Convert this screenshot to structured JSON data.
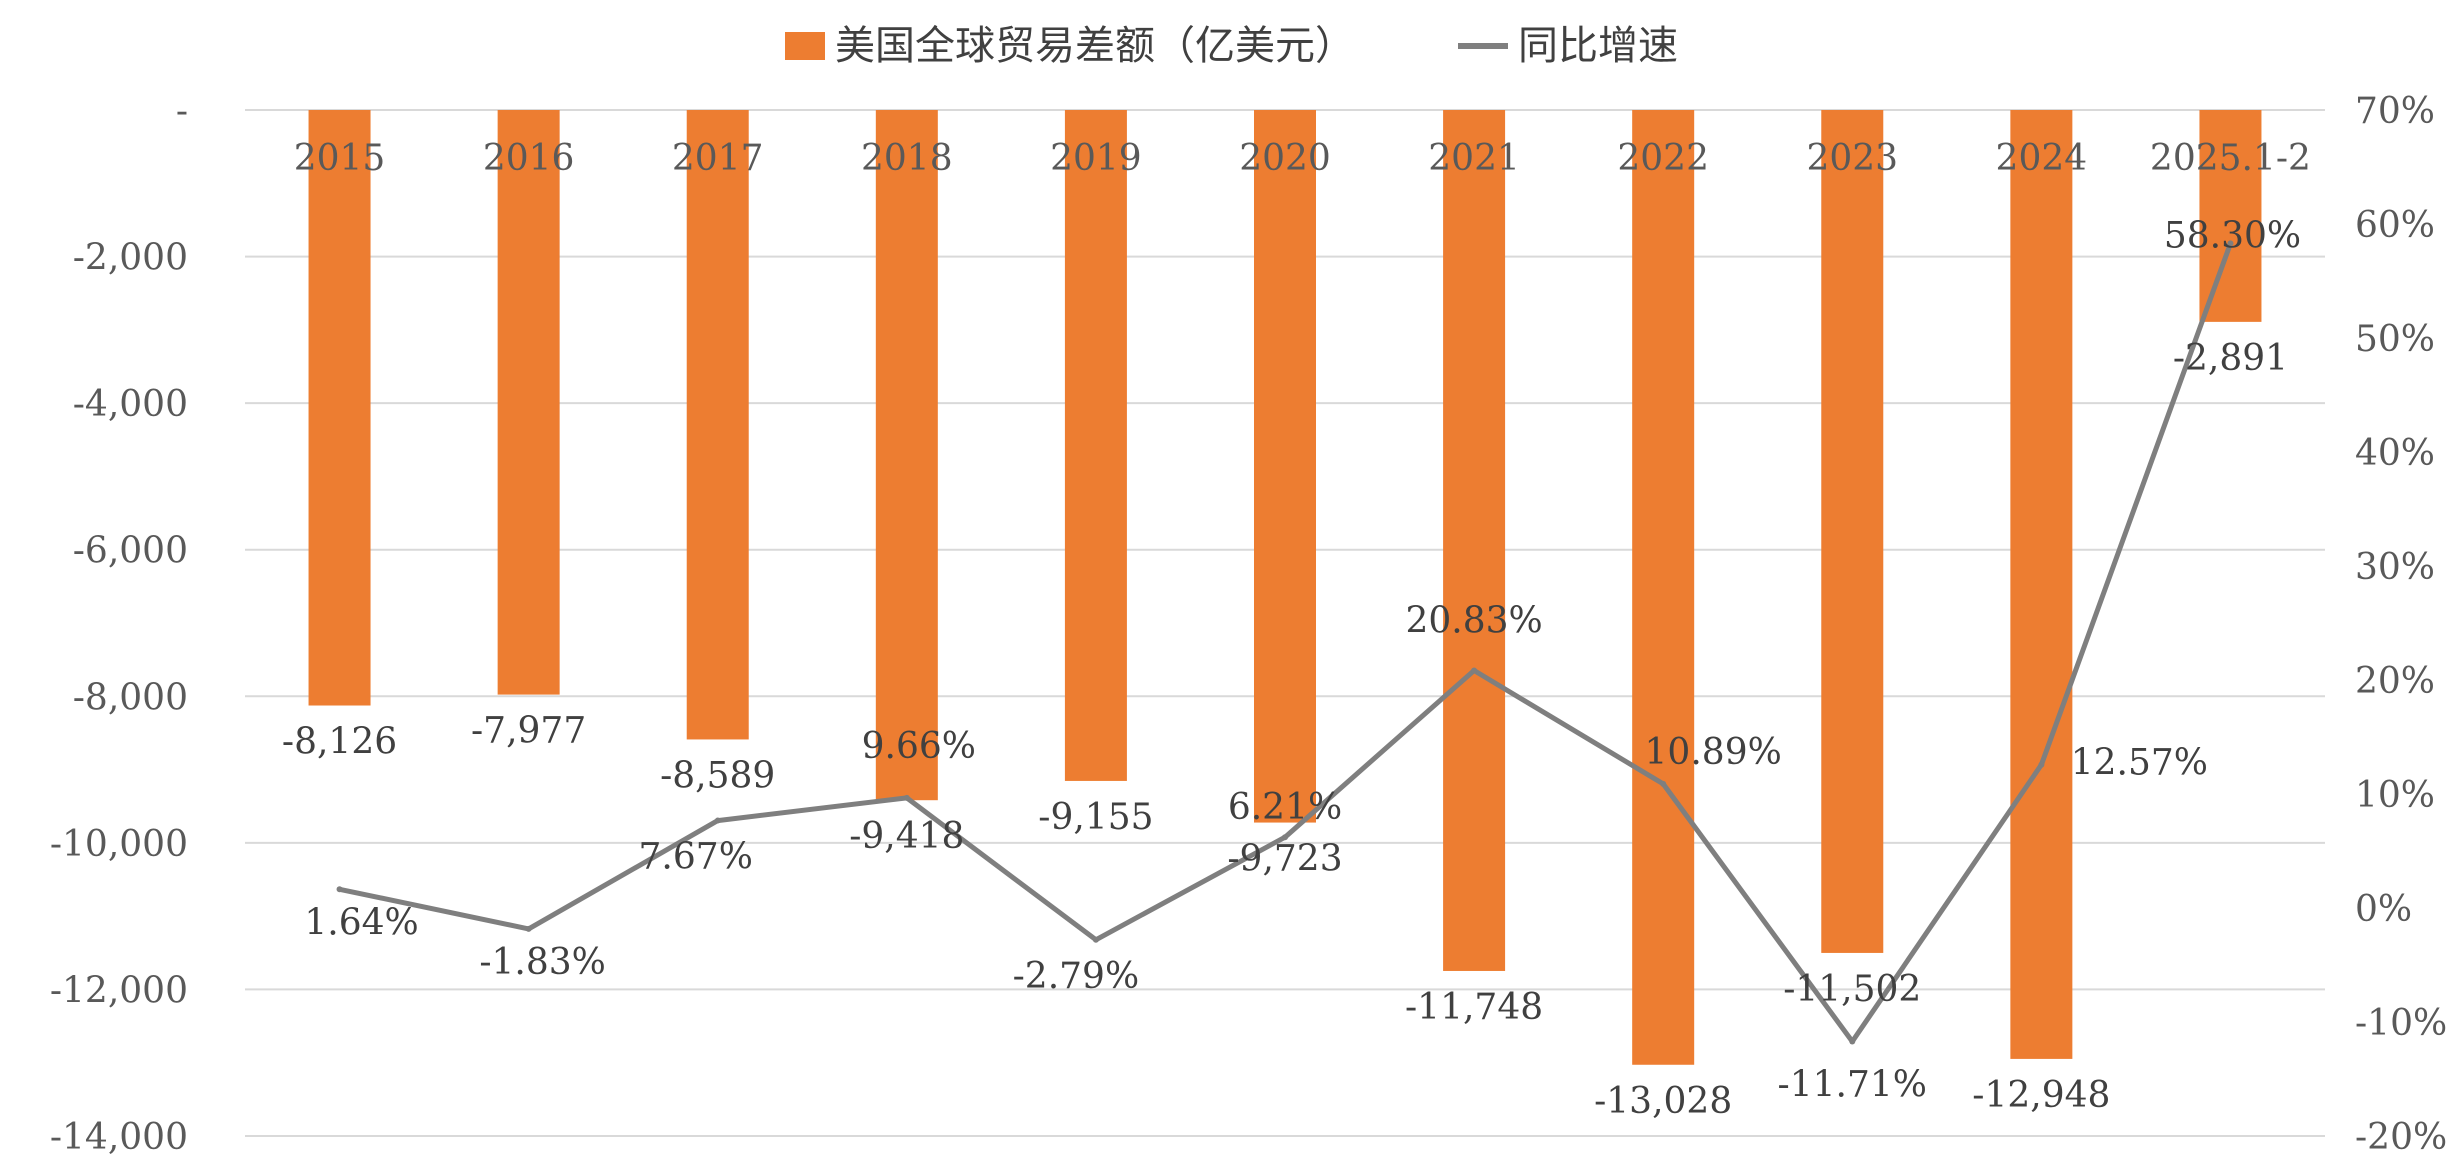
{
  "chart_data": {
    "type": "bar",
    "categories": [
      "2015",
      "2016",
      "2017",
      "2018",
      "2019",
      "2020",
      "2021",
      "2022",
      "2023",
      "2024",
      "2025.1-2"
    ],
    "series": [
      {
        "name": "美国全球贸易差额（亿美元）",
        "type": "bar",
        "axis": "left",
        "color": "#ED7D31",
        "values": [
          -8126,
          -7977,
          -8589,
          -9418,
          -9155,
          -9723,
          -11748,
          -13028,
          -11502,
          -12948,
          -2891
        ],
        "labels": [
          "-8,126",
          "-7,977",
          "-8,589",
          "-9,418",
          "-9,155",
          "-9,723",
          "-11,748",
          "-13,028",
          "-11,502",
          "-12,948",
          "-2,891"
        ]
      },
      {
        "name": "同比增速",
        "type": "line",
        "axis": "right",
        "color": "#7F7F7F",
        "values": [
          1.64,
          -1.83,
          7.67,
          9.66,
          -2.79,
          6.21,
          20.83,
          10.89,
          -11.71,
          12.57,
          58.3
        ],
        "labels": [
          "1.64%",
          "-1.83%",
          "7.67%",
          "9.66%",
          "-2.79%",
          "6.21%",
          "20.83%",
          "10.89%",
          "-11.71%",
          "12.57%",
          "58.30%"
        ]
      }
    ],
    "y_left": {
      "range": [
        -14000,
        0
      ],
      "ticks": [
        0,
        -2000,
        -4000,
        -6000,
        -8000,
        -10000,
        -12000,
        -14000
      ],
      "tick_labels": [
        "-",
        "-2,000",
        "-4,000",
        "-6,000",
        "-8,000",
        "-10,000",
        "-12,000",
        "-14,000"
      ]
    },
    "y_right": {
      "range": [
        -20,
        70
      ],
      "ticks": [
        70,
        60,
        50,
        40,
        30,
        20,
        10,
        0,
        -10,
        -20
      ],
      "tick_labels": [
        "70%",
        "60%",
        "50%",
        "40%",
        "30%",
        "20%",
        "10%",
        "0%",
        "-10%",
        "-20%"
      ]
    },
    "grid": true,
    "legend": "top-center"
  }
}
